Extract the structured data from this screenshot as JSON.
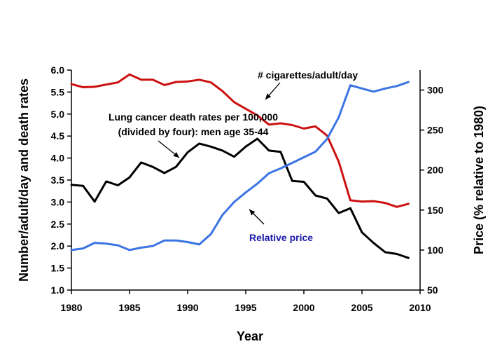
{
  "chart_data": {
    "type": "line",
    "title": "",
    "xlabel": "Year",
    "ylabel": "Number/adult/day and death rates",
    "y2label": "Price (% relative to 1980)",
    "xlim": [
      1980,
      2010
    ],
    "ylim": [
      1.0,
      6.0
    ],
    "y2lim": [
      50,
      325
    ],
    "x_ticks": [
      "1980",
      "1985",
      "1990",
      "1995",
      "2000",
      "2005",
      "2010"
    ],
    "y_ticks": [
      "1.0",
      "1.5",
      "2.0",
      "2.5",
      "3.0",
      "3.5",
      "4.0",
      "4.5",
      "5.0",
      "5.5",
      "6.0"
    ],
    "y2_ticks": [
      "50",
      "100",
      "150",
      "200",
      "250",
      "300"
    ],
    "grid": false,
    "series": [
      {
        "name": "# cigarettes/adult/day",
        "axis": "left",
        "color": "#cc1111",
        "x": [
          1980,
          1981,
          1982,
          1983,
          1984,
          1985,
          1986,
          1987,
          1988,
          1989,
          1990,
          1991,
          1992,
          1993,
          1994,
          1995,
          1996,
          1997,
          1998,
          1999,
          2000,
          2001,
          2002,
          2003,
          2004,
          2005,
          2006,
          2007,
          2008,
          2009
        ],
        "values": [
          5.68,
          5.61,
          5.62,
          5.67,
          5.72,
          5.9,
          5.78,
          5.78,
          5.66,
          5.73,
          5.74,
          5.78,
          5.72,
          5.52,
          5.27,
          5.12,
          4.97,
          4.76,
          4.79,
          4.75,
          4.67,
          4.72,
          4.51,
          3.92,
          3.04,
          3.01,
          3.02,
          2.98,
          2.89,
          2.96
        ]
      },
      {
        "name": "Lung cancer death rates per 100,000 (divided by four): men age 35-44",
        "axis": "left",
        "color": "#000000",
        "x": [
          1980,
          1981,
          1982,
          1983,
          1984,
          1985,
          1986,
          1987,
          1988,
          1989,
          1990,
          1991,
          1992,
          1993,
          1994,
          1995,
          1996,
          1997,
          1998,
          1999,
          2000,
          2001,
          2002,
          2003,
          2004,
          2005,
          2006,
          2007,
          2008,
          2009
        ],
        "values": [
          3.39,
          3.37,
          3.01,
          3.47,
          3.38,
          3.56,
          3.9,
          3.8,
          3.66,
          3.8,
          4.13,
          4.33,
          4.26,
          4.17,
          4.03,
          4.26,
          4.44,
          4.17,
          4.14,
          3.48,
          3.46,
          3.15,
          3.08,
          2.75,
          2.86,
          2.31,
          2.07,
          1.86,
          1.82,
          1.73
        ]
      },
      {
        "name": "Relative price",
        "axis": "right",
        "color": "#3b74e3",
        "x": [
          1980,
          1981,
          1982,
          1983,
          1984,
          1985,
          1986,
          1987,
          1988,
          1989,
          1990,
          1991,
          1992,
          1993,
          1994,
          1995,
          1996,
          1997,
          1998,
          1999,
          2000,
          2001,
          2002,
          2003,
          2004,
          2005,
          2006,
          2007,
          2008,
          2009
        ],
        "values": [
          100,
          102,
          109,
          108,
          106,
          100,
          103,
          105,
          112,
          112,
          110,
          107,
          120,
          144,
          160,
          172,
          183,
          196,
          202,
          209,
          216,
          223,
          239,
          266,
          306,
          302,
          298,
          302,
          305,
          310
        ]
      }
    ],
    "annotations": [
      {
        "text": "# cigarettes/adult/day",
        "color": "#000000"
      },
      {
        "text": "Lung cancer death rates per 100,000",
        "color": "#000000"
      },
      {
        "text": "(divided by four): men age 35-44",
        "color": "#000000"
      },
      {
        "text": "Relative price",
        "color": "#1a1aaa"
      }
    ]
  }
}
